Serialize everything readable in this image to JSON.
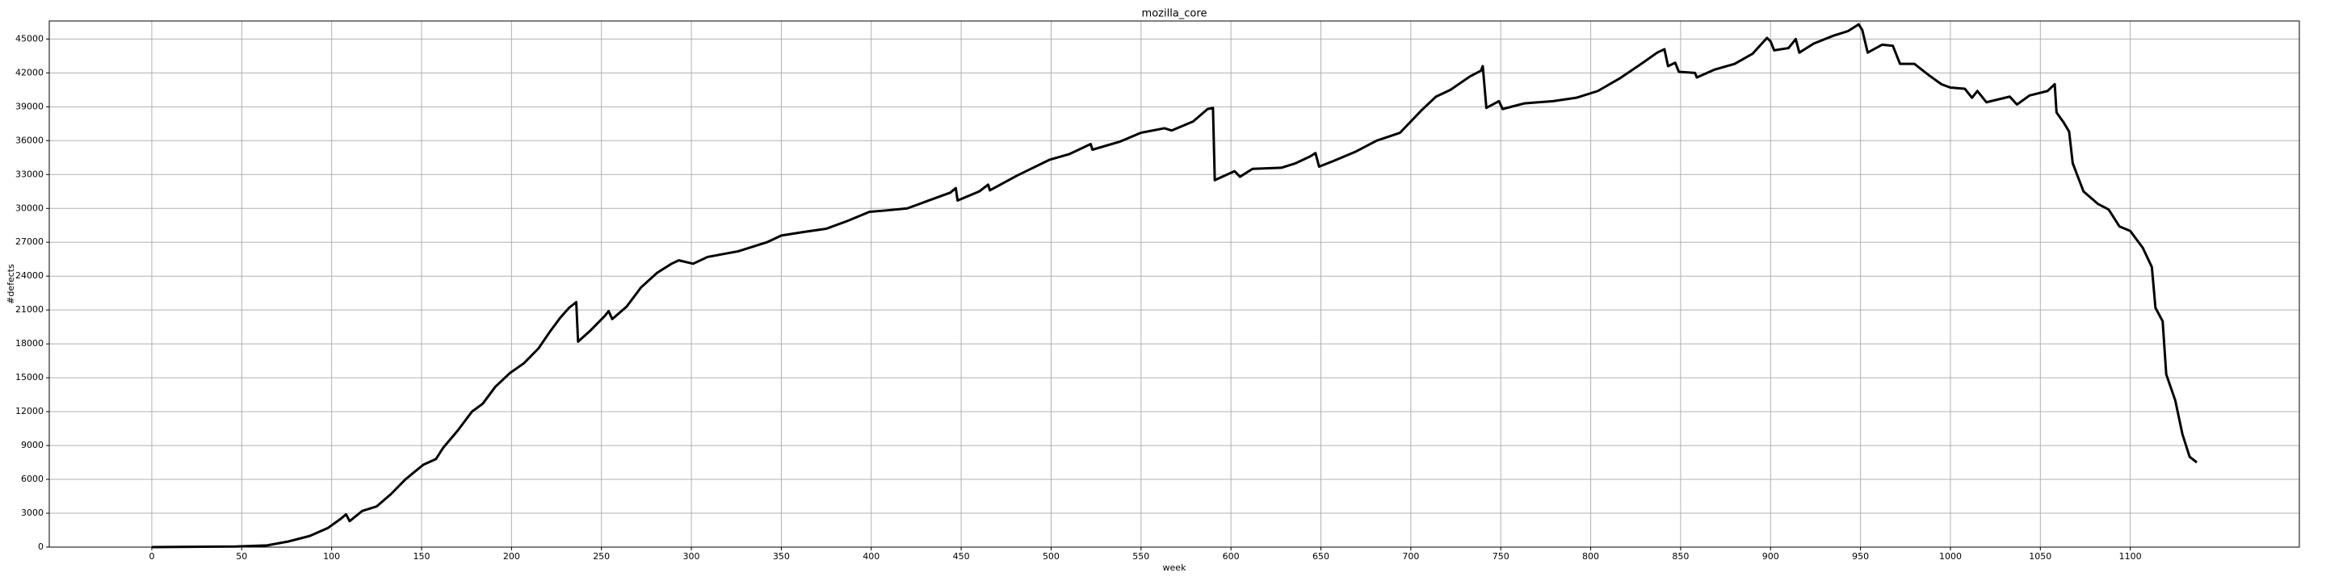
{
  "chart_data": {
    "type": "line",
    "title": "mozilla_core",
    "x_label": "week",
    "y_label": "#defects",
    "color": "#000000",
    "grid": true,
    "x": [
      0,
      47,
      64,
      76,
      88,
      98,
      105,
      108,
      110,
      117,
      125,
      133,
      141,
      151,
      158,
      162,
      170,
      178,
      184,
      191,
      199,
      207,
      215,
      221,
      227,
      232,
      236,
      237,
      244,
      252,
      254,
      256,
      264,
      272,
      281,
      289,
      293,
      301,
      309,
      326,
      342,
      350,
      362,
      375,
      387,
      399,
      407,
      420,
      432,
      444,
      447,
      448,
      460,
      465,
      466,
      481,
      499,
      510,
      522,
      523,
      538,
      550,
      563,
      567,
      579,
      587,
      590,
      591,
      602,
      605,
      612,
      628,
      636,
      644,
      647,
      649,
      657,
      669,
      681,
      694,
      706,
      714,
      722,
      733,
      739,
      740,
      742,
      749,
      751,
      763,
      779,
      792,
      804,
      816,
      829,
      837,
      841,
      843,
      847,
      849,
      858,
      859,
      869,
      880,
      890,
      898,
      900,
      902,
      910,
      914,
      916,
      924,
      935,
      943,
      949,
      951,
      954,
      962,
      968,
      972,
      980,
      988,
      995,
      1000,
      1008,
      1012,
      1015,
      1020,
      1033,
      1037,
      1044,
      1049,
      1054,
      1058,
      1059,
      1063,
      1066,
      1068,
      1074,
      1082,
      1088,
      1094,
      1100,
      1107,
      1112,
      1114,
      1118,
      1120,
      1125,
      1129,
      1133,
      1137
    ],
    "values": [
      0,
      50,
      150,
      500,
      1000,
      1700,
      2500,
      2900,
      2300,
      3200,
      3600,
      4700,
      6000,
      7300,
      7800,
      8800,
      10300,
      12000,
      12700,
      14200,
      15400,
      16300,
      17600,
      19000,
      20300,
      21200,
      21700,
      18200,
      19200,
      20500,
      20900,
      20200,
      21300,
      23000,
      24300,
      25100,
      25400,
      25100,
      25700,
      26200,
      27000,
      27600,
      27900,
      28200,
      28900,
      29700,
      29800,
      30000,
      30700,
      31400,
      31800,
      30700,
      31500,
      32100,
      31600,
      32900,
      34300,
      34800,
      35700,
      35200,
      35900,
      36700,
      37100,
      36900,
      37700,
      38800,
      38900,
      32500,
      33300,
      32800,
      33500,
      33600,
      34000,
      34600,
      34900,
      33700,
      34200,
      35000,
      36000,
      36700,
      38700,
      39900,
      40500,
      41700,
      42200,
      42600,
      38900,
      39500,
      38800,
      39300,
      39500,
      39800,
      40400,
      41500,
      42900,
      43800,
      44100,
      42600,
      42900,
      42100,
      42000,
      41600,
      42300,
      42800,
      43700,
      45100,
      44800,
      44000,
      44200,
      45000,
      43800,
      44600,
      45300,
      45700,
      46300,
      45800,
      43800,
      44500,
      44400,
      42800,
      42800,
      41800,
      41000,
      40700,
      40600,
      39800,
      40400,
      39400,
      39900,
      39200,
      40000,
      40200,
      40400,
      41000,
      38500,
      37600,
      36800,
      34000,
      31500,
      30400,
      29900,
      28400,
      28000,
      26500,
      24800,
      21200,
      20000,
      15300,
      13000,
      10000,
      8000,
      7500
    ],
    "xlim": [
      -57,
      1194
    ],
    "ylim": [
      0,
      46600
    ],
    "xticks": [
      0,
      50,
      100,
      150,
      200,
      250,
      300,
      350,
      400,
      450,
      500,
      550,
      600,
      650,
      700,
      750,
      800,
      850,
      900,
      950,
      1000,
      1050,
      1100
    ],
    "yticks": [
      0,
      3000,
      6000,
      9000,
      12000,
      15000,
      18000,
      21000,
      24000,
      27000,
      30000,
      33000,
      36000,
      39000,
      42000,
      45000
    ]
  }
}
